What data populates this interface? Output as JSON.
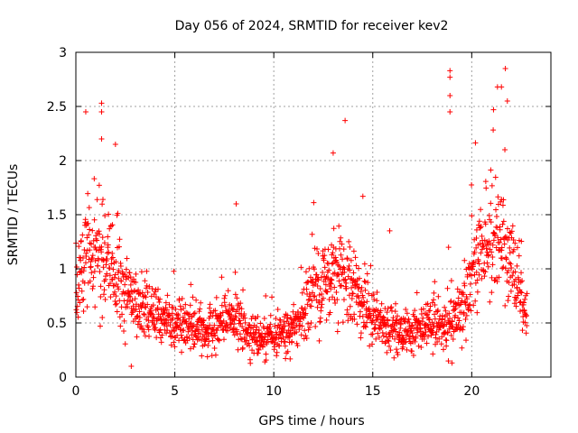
{
  "chart_data": {
    "type": "scatter",
    "title": "Day 056 of 2024, SRMTID for receiver kev2",
    "xlabel": "GPS time / hours",
    "ylabel": "SRMTID / TECUs",
    "xlim": [
      0,
      24
    ],
    "ylim": [
      0,
      3
    ],
    "x_ticks": [
      0,
      5,
      10,
      15,
      20
    ],
    "x_tick_labels": [
      "0",
      "5",
      "10",
      "15",
      "20"
    ],
    "y_ticks": [
      0,
      0.5,
      1,
      1.5,
      2,
      2.5,
      3
    ],
    "y_tick_labels": [
      "0",
      "0.5",
      "1",
      "1.5",
      "2",
      "2.5",
      "3"
    ],
    "grid": true,
    "marker": "+",
    "marker_color": "#ff0000",
    "trend": {
      "hours": [
        0,
        0.5,
        1,
        1.5,
        2,
        2.5,
        3,
        3.5,
        4,
        4.5,
        5,
        5.5,
        6,
        6.5,
        7,
        7.5,
        8,
        8.5,
        9,
        9.5,
        10,
        10.5,
        11,
        11.5,
        12,
        12.5,
        13,
        13.5,
        14,
        14.5,
        15,
        15.5,
        16,
        16.5,
        17,
        17.5,
        18,
        18.5,
        19,
        19.5,
        20,
        20.5,
        21,
        21.5,
        22,
        22.5,
        22.8
      ],
      "median": [
        0.75,
        1.1,
        1.15,
        1.1,
        1.0,
        0.8,
        0.7,
        0.65,
        0.6,
        0.55,
        0.5,
        0.48,
        0.45,
        0.42,
        0.45,
        0.5,
        0.55,
        0.45,
        0.38,
        0.35,
        0.35,
        0.38,
        0.45,
        0.6,
        0.8,
        0.9,
        1.0,
        0.95,
        0.85,
        0.7,
        0.55,
        0.5,
        0.45,
        0.42,
        0.42,
        0.45,
        0.48,
        0.45,
        0.5,
        0.65,
        0.85,
        1.15,
        1.3,
        1.25,
        1.1,
        0.8,
        0.6
      ],
      "spread": [
        0.25,
        0.35,
        0.35,
        0.32,
        0.28,
        0.25,
        0.22,
        0.2,
        0.18,
        0.16,
        0.15,
        0.14,
        0.13,
        0.13,
        0.13,
        0.14,
        0.15,
        0.13,
        0.12,
        0.12,
        0.12,
        0.12,
        0.14,
        0.18,
        0.25,
        0.28,
        0.3,
        0.28,
        0.26,
        0.22,
        0.16,
        0.15,
        0.13,
        0.12,
        0.12,
        0.13,
        0.14,
        0.13,
        0.16,
        0.22,
        0.28,
        0.32,
        0.35,
        0.34,
        0.3,
        0.24,
        0.18
      ],
      "points_per_hour": 75
    },
    "notable_points": [
      {
        "x": 0.5,
        "y": 2.45
      },
      {
        "x": 1.3,
        "y": 2.53
      },
      {
        "x": 1.3,
        "y": 2.45
      },
      {
        "x": 1.3,
        "y": 2.2
      },
      {
        "x": 2.0,
        "y": 2.15
      },
      {
        "x": 2.8,
        "y": 0.1
      },
      {
        "x": 13.0,
        "y": 2.07
      },
      {
        "x": 18.9,
        "y": 2.83
      },
      {
        "x": 18.9,
        "y": 2.77
      },
      {
        "x": 18.9,
        "y": 2.6
      },
      {
        "x": 18.9,
        "y": 2.45
      },
      {
        "x": 21.7,
        "y": 2.85
      },
      {
        "x": 21.5,
        "y": 2.68
      },
      {
        "x": 21.8,
        "y": 2.55
      },
      {
        "x": 21.1,
        "y": 2.47
      },
      {
        "x": 21.3,
        "y": 2.68
      },
      {
        "x": 8.1,
        "y": 1.6
      },
      {
        "x": 14.5,
        "y": 1.67
      },
      {
        "x": 19.0,
        "y": 0.13
      }
    ]
  }
}
